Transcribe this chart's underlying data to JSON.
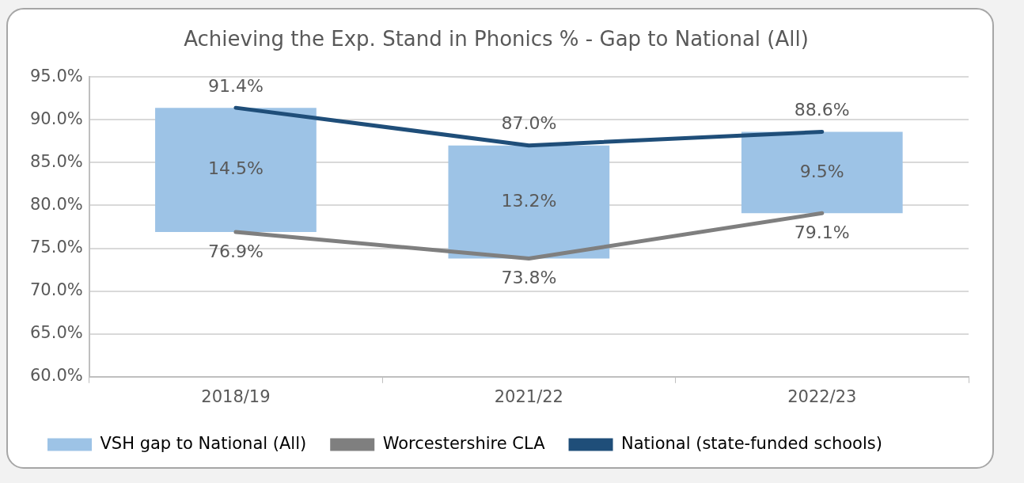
{
  "chart_data": {
    "type": "bar",
    "title": "Achieving the Exp. Stand in Phonics % - Gap to National (All)",
    "categories": [
      "2018/19",
      "2021/22",
      "2022/23"
    ],
    "series": [
      {
        "name": "VSH gap to National (All)",
        "color": "#9dc3e6",
        "base": [
          76.9,
          73.8,
          79.1
        ],
        "values": [
          14.5,
          13.2,
          9.5
        ],
        "value_labels": [
          "14.5%",
          "13.2%",
          "9.5%"
        ]
      },
      {
        "type": "line",
        "name": "Worcestershire CLA",
        "color": "#7f7f7f",
        "values": [
          76.9,
          73.8,
          79.1
        ],
        "value_labels": [
          "76.9%",
          "73.8%",
          "79.1%"
        ]
      },
      {
        "type": "line",
        "name": "National (state-funded schools)",
        "color": "#1f4e79",
        "values": [
          91.4,
          87.0,
          88.6
        ],
        "value_labels": [
          "91.4%",
          "87.0%",
          "88.6%"
        ]
      }
    ],
    "ylim": [
      60,
      95
    ],
    "yticks": [
      {
        "value": 60,
        "label": "60.0%"
      },
      {
        "value": 65,
        "label": "65.0%"
      },
      {
        "value": 70,
        "label": "70.0%"
      },
      {
        "value": 75,
        "label": "75.0%"
      },
      {
        "value": 80,
        "label": "80.0%"
      },
      {
        "value": 85,
        "label": "85.0%"
      },
      {
        "value": 90,
        "label": "90.0%"
      },
      {
        "value": 95,
        "label": "95.0%"
      }
    ],
    "grid": "y",
    "legend": "bottom",
    "marker": "none",
    "line_style": "solid"
  }
}
